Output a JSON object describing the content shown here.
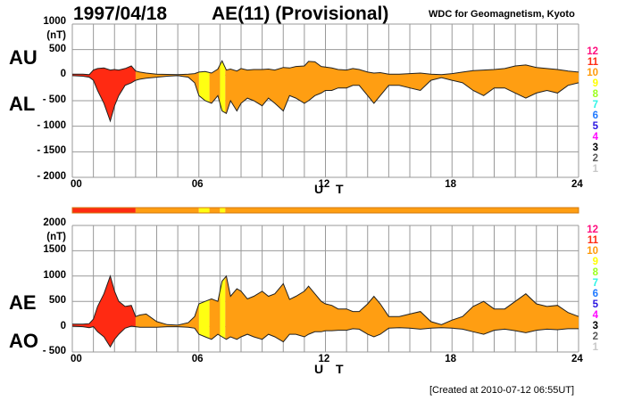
{
  "header": {
    "date": "1997/04/18",
    "index_title": "AE(11) (Provisional)",
    "institution": "WDC for Geomagnetism, Kyoto"
  },
  "footer": {
    "created": "[Created at 2010-07-12 06:55UT]"
  },
  "kp_scale": {
    "labels": [
      "12",
      "11",
      "10",
      "9",
      "8",
      "7",
      "6",
      "5",
      "4",
      "3",
      "2",
      "1"
    ],
    "colors": [
      "#ff0f7f",
      "#ff2a12",
      "#ff9a0a",
      "#ffff00",
      "#9cff1e",
      "#2ef4e6",
      "#1e78ff",
      "#2a14e0",
      "#ff0aff",
      "#000000",
      "#5a5a5a",
      "#c8c8c8"
    ]
  },
  "colors": {
    "red": "#ff2a12",
    "orange": "#ff9e12",
    "yellow": "#ffff12",
    "outline": "#202020",
    "grid": "#999999"
  },
  "chart_data": [
    {
      "type": "area",
      "title": "AU / AL",
      "left_labels": [
        "AU",
        "AL"
      ],
      "ylabel": "(nT)",
      "xlabel": "U T",
      "xlim": [
        0,
        24
      ],
      "ylim": [
        -2000,
        1000
      ],
      "yticks": [
        "1000",
        "500",
        "0",
        "- 500",
        "- 1000",
        "- 1500",
        "- 2000"
      ],
      "ytick_values": [
        1000,
        500,
        0,
        -500,
        -1000,
        -1500,
        -2000
      ],
      "xticks": [
        "00",
        "06",
        "12",
        "18",
        "24"
      ],
      "xtick_values": [
        0,
        6,
        12,
        18,
        24
      ],
      "grid": true,
      "x": [
        0,
        0.5,
        0.8,
        1.0,
        1.2,
        1.5,
        1.8,
        2.0,
        2.2,
        2.5,
        2.8,
        3.0,
        3.2,
        3.5,
        4.0,
        4.5,
        5.0,
        5.5,
        5.8,
        6.0,
        6.3,
        6.6,
        6.9,
        7.1,
        7.3,
        7.5,
        7.8,
        8.0,
        8.3,
        8.6,
        9.0,
        9.3,
        9.6,
        10.0,
        10.3,
        10.6,
        11.0,
        11.2,
        11.5,
        11.8,
        12.0,
        12.3,
        12.6,
        13.0,
        13.3,
        13.6,
        14.0,
        14.3,
        14.6,
        15.0,
        15.5,
        16.0,
        16.5,
        17.0,
        17.5,
        18.0,
        18.5,
        19.0,
        19.5,
        20.0,
        20.5,
        21.0,
        21.5,
        22.0,
        22.5,
        23.0,
        23.5,
        24.0
      ],
      "series": [
        {
          "name": "AU",
          "values": [
            20,
            20,
            10,
            100,
            130,
            140,
            100,
            110,
            100,
            130,
            180,
            80,
            60,
            40,
            20,
            15,
            10,
            20,
            30,
            60,
            70,
            40,
            120,
            280,
            100,
            120,
            80,
            130,
            100,
            110,
            110,
            120,
            100,
            150,
            140,
            170,
            180,
            270,
            260,
            170,
            160,
            140,
            110,
            100,
            130,
            110,
            60,
            40,
            50,
            20,
            20,
            30,
            40,
            20,
            10,
            30,
            60,
            90,
            100,
            110,
            130,
            180,
            200,
            150,
            130,
            110,
            80,
            60
          ]
        },
        {
          "name": "AL",
          "values": [
            -10,
            -20,
            -40,
            -100,
            -300,
            -550,
            -900,
            -600,
            -400,
            -200,
            -150,
            -100,
            -80,
            -60,
            -40,
            -20,
            -10,
            -40,
            -150,
            -400,
            -500,
            -550,
            -400,
            -700,
            -750,
            -500,
            -700,
            -550,
            -450,
            -500,
            -600,
            -450,
            -550,
            -700,
            -400,
            -450,
            -550,
            -500,
            -400,
            -350,
            -300,
            -300,
            -250,
            -250,
            -200,
            -200,
            -400,
            -550,
            -400,
            -200,
            -200,
            -250,
            -300,
            -100,
            -50,
            -100,
            -150,
            -300,
            -400,
            -250,
            -250,
            -350,
            -450,
            -350,
            -300,
            -350,
            -200,
            -150
          ]
        }
      ],
      "kp_color_segments": [
        {
          "from": 0,
          "to": 3,
          "color": "red"
        },
        {
          "from": 3,
          "to": 6,
          "color": "orange"
        },
        {
          "from": 6,
          "to": 6.5,
          "color": "yellow"
        },
        {
          "from": 6.5,
          "to": 7.0,
          "color": "orange"
        },
        {
          "from": 7.0,
          "to": 7.25,
          "color": "yellow"
        },
        {
          "from": 7.25,
          "to": 24,
          "color": "orange"
        }
      ]
    },
    {
      "type": "area",
      "title": "AE / AO",
      "left_labels": [
        "AE",
        "AO"
      ],
      "ylabel": "(nT)",
      "xlabel": "U T",
      "xlim": [
        0,
        24
      ],
      "ylim": [
        -500,
        2000
      ],
      "yticks": [
        "2000",
        "1500",
        "1000",
        "500",
        "0",
        "- 500"
      ],
      "ytick_values": [
        2000,
        1500,
        1000,
        500,
        0,
        -500
      ],
      "xticks": [
        "00",
        "06",
        "12",
        "18",
        "24"
      ],
      "xtick_values": [
        0,
        6,
        12,
        18,
        24
      ],
      "grid": true,
      "x": [
        0,
        0.5,
        0.8,
        1.0,
        1.2,
        1.5,
        1.8,
        2.0,
        2.2,
        2.5,
        2.8,
        3.0,
        3.2,
        3.5,
        4.0,
        4.5,
        5.0,
        5.5,
        5.8,
        6.0,
        6.3,
        6.6,
        6.9,
        7.1,
        7.3,
        7.5,
        7.8,
        8.0,
        8.3,
        8.6,
        9.0,
        9.3,
        9.6,
        10.0,
        10.3,
        10.6,
        11.0,
        11.2,
        11.5,
        11.8,
        12.0,
        12.3,
        12.6,
        13.0,
        13.3,
        13.6,
        14.0,
        14.3,
        14.6,
        15.0,
        15.5,
        16.0,
        16.5,
        17.0,
        17.5,
        18.0,
        18.5,
        19.0,
        19.5,
        20.0,
        20.5,
        21.0,
        21.5,
        22.0,
        22.5,
        23.0,
        23.5,
        24.0
      ],
      "series": [
        {
          "name": "AE",
          "values": [
            50,
            50,
            60,
            150,
            400,
            650,
            1000,
            700,
            500,
            400,
            420,
            200,
            230,
            250,
            100,
            40,
            30,
            80,
            200,
            450,
            500,
            550,
            500,
            900,
            1000,
            600,
            750,
            700,
            550,
            600,
            700,
            600,
            650,
            850,
            540,
            600,
            700,
            800,
            650,
            500,
            450,
            420,
            350,
            350,
            300,
            300,
            450,
            600,
            450,
            200,
            200,
            250,
            300,
            100,
            40,
            130,
            200,
            400,
            500,
            350,
            350,
            500,
            650,
            450,
            400,
            420,
            280,
            200
          ]
        },
        {
          "name": "AO",
          "values": [
            10,
            0,
            -20,
            0,
            -100,
            -200,
            -400,
            -250,
            -150,
            -30,
            10,
            0,
            -10,
            -10,
            -10,
            0,
            0,
            -10,
            -30,
            -150,
            -200,
            -250,
            -150,
            -200,
            -250,
            -200,
            -250,
            -200,
            -150,
            -200,
            -250,
            -150,
            -200,
            -300,
            -150,
            -150,
            -200,
            -150,
            -100,
            -100,
            -80,
            -80,
            -70,
            -70,
            -40,
            -50,
            -150,
            -200,
            -150,
            -30,
            -20,
            -30,
            -50,
            -30,
            -20,
            -30,
            -50,
            -100,
            -150,
            -70,
            -50,
            -80,
            -120,
            -70,
            -50,
            -60,
            -40,
            -40
          ]
        }
      ],
      "kp_color_segments": [
        {
          "from": 0,
          "to": 3,
          "color": "red"
        },
        {
          "from": 3,
          "to": 6,
          "color": "orange"
        },
        {
          "from": 6,
          "to": 6.5,
          "color": "yellow"
        },
        {
          "from": 6.5,
          "to": 7.0,
          "color": "orange"
        },
        {
          "from": 7.0,
          "to": 7.25,
          "color": "yellow"
        },
        {
          "from": 7.25,
          "to": 24,
          "color": "orange"
        }
      ]
    }
  ],
  "activity_bar": {
    "segments": [
      {
        "from": 0,
        "to": 3,
        "color": "red"
      },
      {
        "from": 3,
        "to": 6,
        "color": "orange"
      },
      {
        "from": 6,
        "to": 6.5,
        "color": "yellow"
      },
      {
        "from": 6.5,
        "to": 7.0,
        "color": "orange"
      },
      {
        "from": 7.0,
        "to": 7.25,
        "color": "yellow"
      },
      {
        "from": 7.25,
        "to": 24,
        "color": "orange"
      }
    ]
  }
}
